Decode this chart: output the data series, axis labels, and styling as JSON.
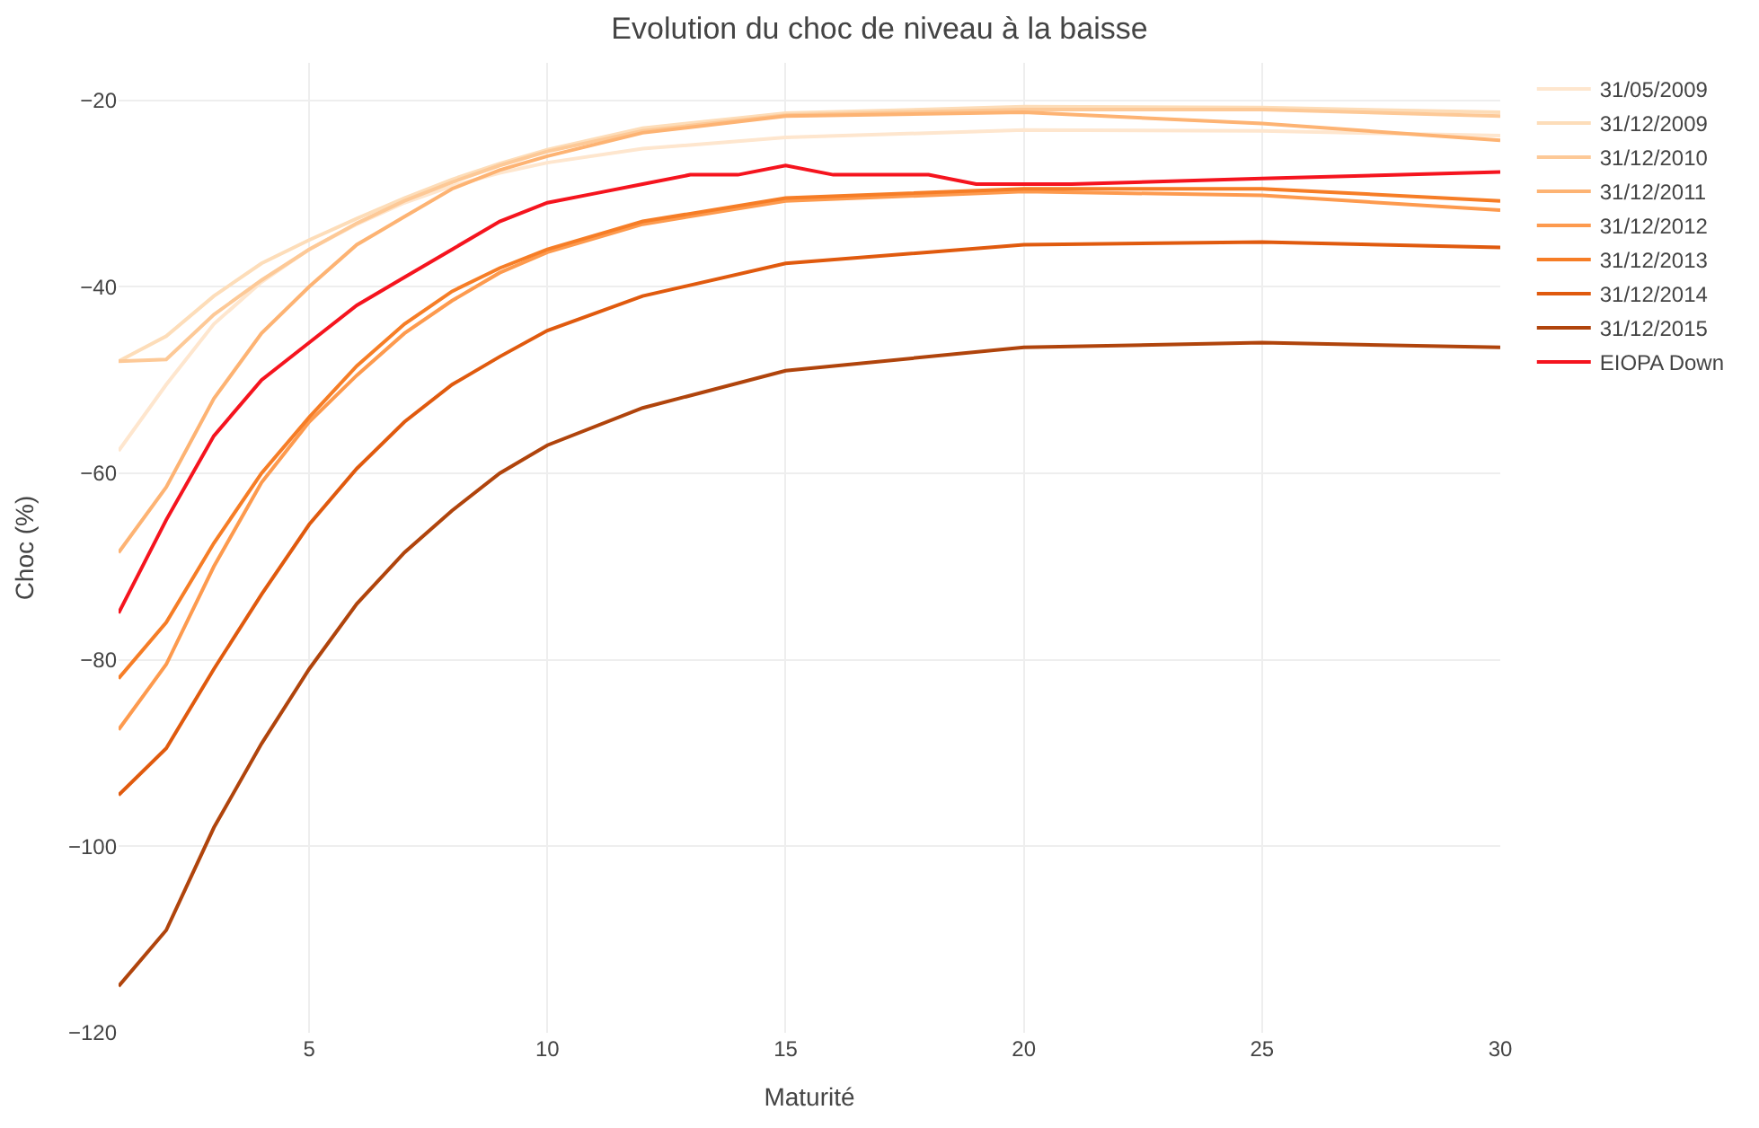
{
  "chart_data": {
    "type": "line",
    "title": "Evolution du choc de niveau à la baisse",
    "xlabel": "Maturité",
    "ylabel": "Choc (%)",
    "xlim": [
      1,
      30
    ],
    "xticks": [
      5,
      10,
      15,
      20,
      25,
      30
    ],
    "ylim": [
      -120,
      -16
    ],
    "yticks": [
      -120,
      -100,
      -80,
      -60,
      -40,
      -20
    ],
    "grid": true,
    "legend": "top right",
    "marker": "none",
    "line_style": "solid",
    "series": [
      {
        "name": "31/05/2009",
        "color": "#fee6ce",
        "x": [
          1,
          2,
          3,
          4,
          5,
          6,
          7,
          8,
          9,
          10,
          12,
          15,
          20,
          25,
          30
        ],
        "values": [
          -57.6,
          -50.5,
          -44,
          -39.5,
          -36,
          -33.3,
          -31,
          -29.2,
          -27.8,
          -26.7,
          -25.2,
          -24,
          -23.2,
          -23.3,
          -23.8
        ]
      },
      {
        "name": "31/12/2009",
        "color": "#fdddb9",
        "x": [
          1,
          2,
          3,
          4,
          5,
          6,
          7,
          8,
          9,
          10,
          12,
          15,
          20,
          25,
          30
        ],
        "values": [
          -48,
          -45.3,
          -41,
          -37.5,
          -35,
          -32.7,
          -30.5,
          -28.5,
          -26.8,
          -25.3,
          -23,
          -21.4,
          -20.7,
          -20.8,
          -21.3
        ]
      },
      {
        "name": "31/12/2010",
        "color": "#fdc997",
        "x": [
          1,
          2,
          3,
          4,
          5,
          6,
          7,
          8,
          9,
          10,
          12,
          15,
          20,
          25,
          30
        ],
        "values": [
          -48,
          -47.8,
          -43,
          -39.3,
          -36,
          -33.2,
          -30.8,
          -28.8,
          -27,
          -25.5,
          -23.3,
          -21.6,
          -21,
          -21,
          -21.7
        ]
      },
      {
        "name": "31/12/2011",
        "color": "#fdb373",
        "x": [
          1,
          2,
          3,
          4,
          5,
          6,
          7,
          8,
          9,
          10,
          12,
          15,
          20,
          25,
          30
        ],
        "values": [
          -68.5,
          -61.5,
          -52,
          -45,
          -40,
          -35.5,
          -32.5,
          -29.5,
          -27.5,
          -26,
          -23.5,
          -21.7,
          -21.3,
          -22.5,
          -24.3
        ]
      },
      {
        "name": "31/12/2012",
        "color": "#fd9a4e",
        "x": [
          1,
          2,
          3,
          4,
          5,
          6,
          7,
          8,
          9,
          10,
          12,
          15,
          20,
          25,
          30
        ],
        "values": [
          -87.5,
          -80.5,
          -70,
          -61,
          -54.5,
          -49.5,
          -45,
          -41.5,
          -38.5,
          -36.3,
          -33.3,
          -30.8,
          -29.8,
          -30.2,
          -31.8
        ]
      },
      {
        "name": "31/12/2013",
        "color": "#f67d26",
        "x": [
          1,
          2,
          3,
          4,
          5,
          6,
          7,
          8,
          9,
          10,
          12,
          15,
          20,
          25,
          30
        ],
        "values": [
          -82,
          -76,
          -67.5,
          -60,
          -54,
          -48.5,
          -44,
          -40.5,
          -38,
          -36,
          -33,
          -30.5,
          -29.5,
          -29.5,
          -30.8
        ]
      },
      {
        "name": "31/12/2014",
        "color": "#e05a0e",
        "x": [
          1,
          2,
          3,
          4,
          5,
          6,
          7,
          8,
          9,
          10,
          12,
          15,
          20,
          25,
          30
        ],
        "values": [
          -94.5,
          -89.5,
          -81,
          -73,
          -65.5,
          -59.5,
          -54.5,
          -50.5,
          -47.5,
          -44.7,
          -41,
          -37.5,
          -35.5,
          -35.2,
          -35.8
        ]
      },
      {
        "name": "31/12/2015",
        "color": "#b0440c",
        "x": [
          1,
          2,
          3,
          4,
          5,
          6,
          7,
          8,
          9,
          10,
          12,
          15,
          20,
          25,
          30
        ],
        "values": [
          -115,
          -109,
          -98,
          -89,
          -81,
          -74,
          -68.5,
          -64,
          -60,
          -57,
          -53,
          -49,
          -46.5,
          -46,
          -46.5
        ]
      },
      {
        "name": "EIOPA Down",
        "color": "#f5141e",
        "x": [
          1,
          2,
          3,
          4,
          5,
          6,
          7,
          8,
          9,
          10,
          11,
          12,
          13,
          14,
          15,
          16,
          17,
          18,
          19,
          20,
          21,
          25,
          30
        ],
        "values": [
          -75,
          -65,
          -56,
          -50,
          -46,
          -42,
          -39,
          -36,
          -33,
          -31,
          -30,
          -29,
          -28,
          -28,
          -27,
          -28,
          -28,
          -28,
          -29,
          -29,
          -29,
          -28.4,
          -27.7
        ]
      }
    ]
  }
}
